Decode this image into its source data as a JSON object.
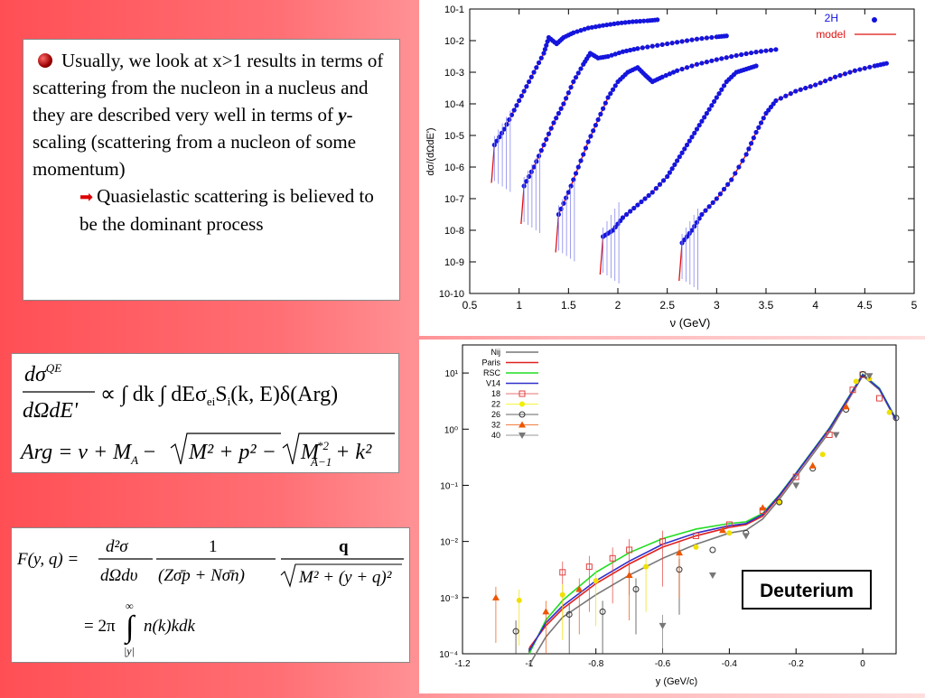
{
  "text_panel": {
    "bullet_main_1": "Usually, we look at x>1 results in terms of scattering from the nucleon in a nucleus and they are described very well in terms of ",
    "bullet_main_y": "y",
    "bullet_main_2": "-scaling (scattering from a nucleon of some momentum)",
    "bullet_sub": "Quasielastic scattering is believed to be the dominant process"
  },
  "equation_1": {
    "lhs_num": "dσ",
    "lhs_sup": "QE",
    "lhs_den": "dΩdE'",
    "rhs": "∝ ∫ dk ∫ dEσ",
    "sigma_sub": "ei",
    "rhs2": "S",
    "s_sub": "i",
    "rhs3": "(k, E)δ(Arg)",
    "arg_line": "Arg = ν + M",
    "arg_msub": "A",
    "arg_rest1": "−",
    "arg_sqrt1": "M² + p² −",
    "arg_sqrt2": "M",
    "arg_sup2": "*2",
    "arg_sub2": "A−1",
    "arg_tail": "+ k²"
  },
  "equation_2": {
    "lhs": "F(y, q) =",
    "frac1_num": "d²σ",
    "frac1_den": "dΩdυ",
    "frac2_num": "1",
    "frac2_den": "(Zσ̄p + Nσ̄n)",
    "frac3_num": "q",
    "frac3_den": "M² + (y + q)²",
    "line2": "= 2π",
    "int_upper": "∞",
    "int_lower": "|y|",
    "line2_rest": "n(k)kdk"
  },
  "chart_data": [
    {
      "type": "scatter",
      "title": "",
      "xlabel": "ν (GeV)",
      "ylabel": "dσ/(dΩdE')",
      "xlim": [
        0.5,
        5
      ],
      "ylim_log10": [
        -10,
        -1
      ],
      "x_ticks": [
        "0.5",
        "1",
        "1.5",
        "2",
        "2.5",
        "3",
        "3.5",
        "4",
        "4.5",
        "5"
      ],
      "y_ticks": [
        "10-1",
        "10-2",
        "10-3",
        "10-4",
        "10-5",
        "10-6",
        "10-7",
        "10-8",
        "10-9",
        "10-10"
      ],
      "legend": [
        {
          "name": "2H",
          "kind": "points",
          "color": "#1111dd"
        },
        {
          "name": "model",
          "kind": "line",
          "color": "#e01010"
        }
      ],
      "series": [
        {
          "points": [
            [
              0.75,
              -5.3
            ],
            [
              0.85,
              -4.8
            ],
            [
              0.95,
              -4.2
            ],
            [
              1.05,
              -3.6
            ],
            [
              1.15,
              -3.0
            ],
            [
              1.25,
              -2.4
            ],
            [
              1.3,
              -1.9
            ],
            [
              1.38,
              -2.1
            ],
            [
              1.45,
              -1.9
            ],
            [
              1.55,
              -1.75
            ],
            [
              1.7,
              -1.6
            ],
            [
              1.85,
              -1.52
            ],
            [
              2.0,
              -1.45
            ],
            [
              2.15,
              -1.4
            ],
            [
              2.3,
              -1.37
            ],
            [
              2.4,
              -1.34
            ]
          ]
        },
        {
          "points": [
            [
              1.05,
              -6.6
            ],
            [
              1.15,
              -6.0
            ],
            [
              1.25,
              -5.3
            ],
            [
              1.35,
              -4.6
            ],
            [
              1.45,
              -4.0
            ],
            [
              1.55,
              -3.3
            ],
            [
              1.65,
              -2.75
            ],
            [
              1.72,
              -2.4
            ],
            [
              1.8,
              -2.55
            ],
            [
              1.9,
              -2.5
            ],
            [
              2.05,
              -2.35
            ],
            [
              2.2,
              -2.25
            ],
            [
              2.4,
              -2.15
            ],
            [
              2.6,
              -2.05
            ],
            [
              2.8,
              -1.95
            ],
            [
              3.0,
              -1.88
            ],
            [
              3.1,
              -1.85
            ]
          ]
        },
        {
          "points": [
            [
              1.4,
              -7.5
            ],
            [
              1.5,
              -6.8
            ],
            [
              1.6,
              -6.0
            ],
            [
              1.7,
              -5.2
            ],
            [
              1.8,
              -4.5
            ],
            [
              1.9,
              -3.8
            ],
            [
              2.0,
              -3.3
            ],
            [
              2.1,
              -3.0
            ],
            [
              2.2,
              -2.85
            ],
            [
              2.28,
              -3.1
            ],
            [
              2.35,
              -3.3
            ],
            [
              2.45,
              -3.15
            ],
            [
              2.6,
              -2.95
            ],
            [
              2.8,
              -2.75
            ],
            [
              3.0,
              -2.6
            ],
            [
              3.2,
              -2.47
            ],
            [
              3.4,
              -2.36
            ],
            [
              3.6,
              -2.28
            ]
          ]
        },
        {
          "points": [
            [
              1.85,
              -8.2
            ],
            [
              1.95,
              -8.0
            ],
            [
              2.05,
              -7.6
            ],
            [
              2.2,
              -7.2
            ],
            [
              2.35,
              -6.8
            ],
            [
              2.5,
              -6.3
            ],
            [
              2.6,
              -5.8
            ],
            [
              2.7,
              -5.3
            ],
            [
              2.8,
              -4.8
            ],
            [
              2.9,
              -4.3
            ],
            [
              3.0,
              -3.8
            ],
            [
              3.1,
              -3.3
            ],
            [
              3.2,
              -3.0
            ],
            [
              3.3,
              -2.9
            ],
            [
              3.4,
              -2.8
            ]
          ]
        },
        {
          "points": [
            [
              2.65,
              -8.4
            ],
            [
              2.75,
              -8.0
            ],
            [
              2.85,
              -7.5
            ],
            [
              3.0,
              -7.0
            ],
            [
              3.15,
              -6.4
            ],
            [
              3.3,
              -5.6
            ],
            [
              3.4,
              -4.9
            ],
            [
              3.5,
              -4.3
            ],
            [
              3.6,
              -3.9
            ],
            [
              3.8,
              -3.6
            ],
            [
              4.0,
              -3.4
            ],
            [
              4.2,
              -3.15
            ],
            [
              4.4,
              -2.95
            ],
            [
              4.6,
              -2.8
            ],
            [
              4.72,
              -2.72
            ]
          ]
        }
      ]
    },
    {
      "type": "scatter",
      "title": "",
      "xlabel": "y (GeV/c)",
      "ylabel": "",
      "xlim": [
        -1.2,
        0.1
      ],
      "ylim_log10": [
        -4,
        1.5
      ],
      "x_ticks": [
        "-1.2",
        "-1",
        "-0.8",
        "-0.6",
        "-0.4",
        "-0.2",
        "0"
      ],
      "y_ticks": [
        "10¹",
        "10⁰",
        "10⁻¹",
        "10⁻²",
        "10⁻³",
        "10⁻⁴"
      ],
      "legend": [
        {
          "name": "Nij",
          "kind": "line",
          "color": "#777777"
        },
        {
          "name": "Paris",
          "kind": "line",
          "color": "#e02020"
        },
        {
          "name": "RSC",
          "kind": "line",
          "color": "#22dd22"
        },
        {
          "name": "V14",
          "kind": "line",
          "color": "#3030cc"
        },
        {
          "name": "18",
          "kind": "square",
          "color": "#e04040"
        },
        {
          "name": "22",
          "kind": "dot",
          "color": "#f0f000"
        },
        {
          "name": "26",
          "kind": "circle",
          "color": "#333333"
        },
        {
          "name": "32",
          "kind": "triangle",
          "color": "#ee5500"
        },
        {
          "name": "40",
          "kind": "tri-down",
          "color": "#777777"
        }
      ],
      "annotation": "Deuterium",
      "curves": {
        "x": [
          -1.0,
          -0.95,
          -0.9,
          -0.8,
          -0.7,
          -0.6,
          -0.5,
          -0.4,
          -0.35,
          -0.3,
          -0.25,
          -0.2,
          -0.15,
          -0.1,
          -0.05,
          0.0,
          0.05,
          0.1
        ],
        "Nij": [
          -4.2,
          -3.7,
          -3.35,
          -2.95,
          -2.6,
          -2.3,
          -2.05,
          -1.85,
          -1.8,
          -1.6,
          -1.25,
          -0.85,
          -0.45,
          -0.05,
          0.45,
          0.95,
          0.7,
          0.15
        ],
        "Paris": [
          -3.9,
          -3.5,
          -3.2,
          -2.75,
          -2.4,
          -2.1,
          -1.9,
          -1.75,
          -1.7,
          -1.55,
          -1.2,
          -0.8,
          -0.4,
          0.0,
          0.48,
          0.97,
          0.72,
          0.17
        ],
        "RSC": [
          -4.0,
          -3.4,
          -3.05,
          -2.55,
          -2.2,
          -1.95,
          -1.78,
          -1.68,
          -1.65,
          -1.5,
          -1.17,
          -0.78,
          -0.38,
          0.02,
          0.5,
          0.98,
          0.73,
          0.18
        ],
        "V14": [
          -3.95,
          -3.45,
          -3.15,
          -2.7,
          -2.35,
          -2.05,
          -1.85,
          -1.72,
          -1.68,
          -1.52,
          -1.18,
          -0.79,
          -0.39,
          0.01,
          0.49,
          0.97,
          0.72,
          0.17
        ]
      },
      "points": {
        "18": [
          [
            -0.9,
            -2.55
          ],
          [
            -0.82,
            -2.45
          ],
          [
            -0.75,
            -2.3
          ],
          [
            -0.7,
            -2.15
          ],
          [
            -0.6,
            -2.0
          ],
          [
            -0.5,
            -1.9
          ],
          [
            -0.4,
            -1.7
          ],
          [
            -0.3,
            -1.45
          ],
          [
            -0.2,
            -0.85
          ],
          [
            -0.1,
            -0.1
          ],
          [
            -0.03,
            0.7
          ],
          [
            0.0,
            0.97
          ],
          [
            0.05,
            0.55
          ]
        ],
        "22": [
          [
            -1.03,
            -3.05
          ],
          [
            -0.9,
            -2.95
          ],
          [
            -0.8,
            -2.7
          ],
          [
            -0.65,
            -2.45
          ],
          [
            -0.5,
            -2.1
          ],
          [
            -0.4,
            -1.85
          ],
          [
            -0.25,
            -1.3
          ],
          [
            -0.12,
            -0.45
          ],
          [
            -0.02,
            0.85
          ],
          [
            0.02,
            0.9
          ],
          [
            0.08,
            0.3
          ]
        ],
        "26": [
          [
            -1.04,
            -3.6
          ],
          [
            -0.88,
            -3.3
          ],
          [
            -0.78,
            -3.25
          ],
          [
            -0.68,
            -2.85
          ],
          [
            -0.55,
            -2.5
          ],
          [
            -0.45,
            -2.15
          ],
          [
            -0.35,
            -1.85
          ],
          [
            -0.25,
            -1.3
          ],
          [
            -0.15,
            -0.7
          ],
          [
            -0.05,
            0.35
          ],
          [
            0.0,
            0.98
          ],
          [
            0.1,
            0.2
          ]
        ],
        "32": [
          [
            -1.1,
            -3.0
          ],
          [
            -0.95,
            -3.25
          ],
          [
            -0.85,
            -2.85
          ],
          [
            -0.7,
            -2.6
          ],
          [
            -0.55,
            -2.2
          ],
          [
            -0.42,
            -1.8
          ],
          [
            -0.3,
            -1.4
          ],
          [
            -0.15,
            -0.65
          ],
          [
            -0.05,
            0.4
          ]
        ],
        "40": [
          [
            -0.6,
            -3.5
          ],
          [
            -0.45,
            -2.6
          ],
          [
            -0.35,
            -1.9
          ],
          [
            -0.2,
            -1.0
          ],
          [
            -0.08,
            -0.1
          ],
          [
            0.02,
            0.95
          ]
        ]
      }
    }
  ]
}
